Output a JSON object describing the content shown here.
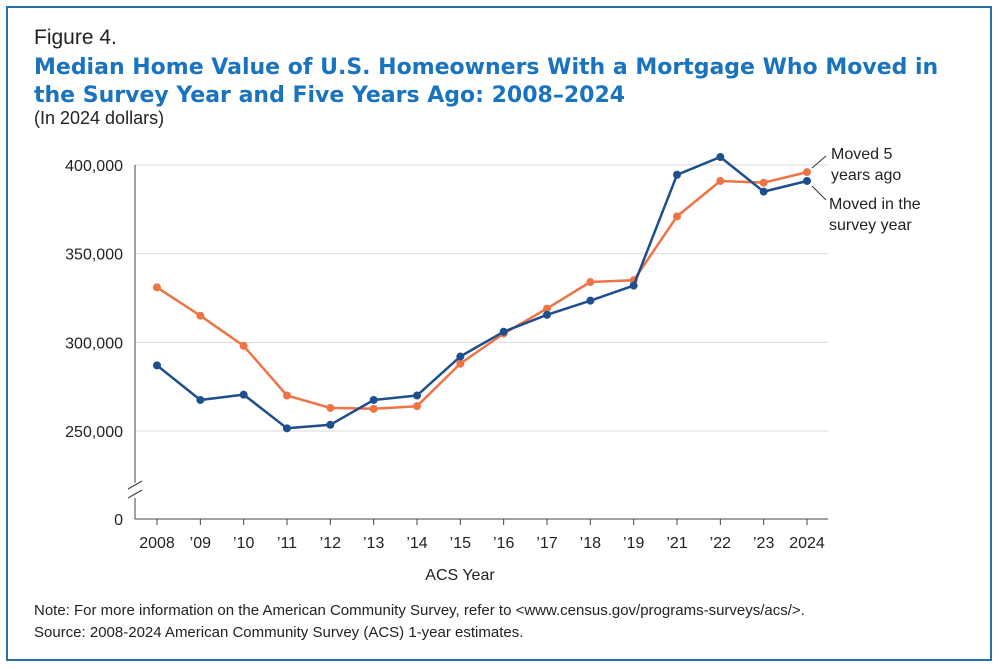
{
  "figure_label": "Figure 4.",
  "note": "Note: For more information on the American Community Survey, refer to <www.census.gov/programs-surveys/acs/>.",
  "source": "Source: 2008-2024 American Community Survey (ACS) 1-year estimates.",
  "colors": {
    "border": "#2b6ea3",
    "title": "#1a73bf",
    "moved_survey_year": "#1f4e8c",
    "moved_5_years": "#ee7345",
    "grid": "#d9d9d9"
  },
  "chart_data": {
    "type": "line",
    "title": "Median Home Value of U.S. Homeowners With a Mortgage Who Moved in the Survey Year and Five Years Ago: 2008–2024",
    "subtitle": "(In 2024 dollars)",
    "xlabel": "ACS Year",
    "ylabel": "",
    "categories": [
      "2008",
      "’09",
      "’10",
      "’11",
      "’12",
      "’13",
      "’14",
      "’15",
      "’16",
      "’17",
      "’18",
      "’19",
      "’21",
      "’22",
      "’23",
      "2024"
    ],
    "y_ticks": [
      0,
      250000,
      300000,
      350000,
      400000
    ],
    "y_tick_labels": [
      "0",
      "250,000",
      "300,000",
      "350,000",
      "400,000"
    ],
    "ylim": [
      230000,
      405000
    ],
    "axis_break": true,
    "grid": true,
    "series": [
      {
        "name": "Moved 5 years ago",
        "label_lines": [
          "Moved 5",
          "years ago"
        ],
        "color": "#ee7345",
        "values": [
          331000,
          315000,
          298000,
          270000,
          263000,
          262500,
          264000,
          288000,
          305000,
          319000,
          334000,
          335000,
          371000,
          391000,
          390000,
          396000
        ]
      },
      {
        "name": "Moved in the survey year",
        "label_lines": [
          "Moved in the",
          "survey year"
        ],
        "color": "#1f4e8c",
        "values": [
          287000,
          267500,
          270500,
          251500,
          253500,
          267500,
          270000,
          292000,
          306000,
          315500,
          323500,
          332000,
          394500,
          404500,
          385000,
          391000
        ]
      }
    ]
  }
}
